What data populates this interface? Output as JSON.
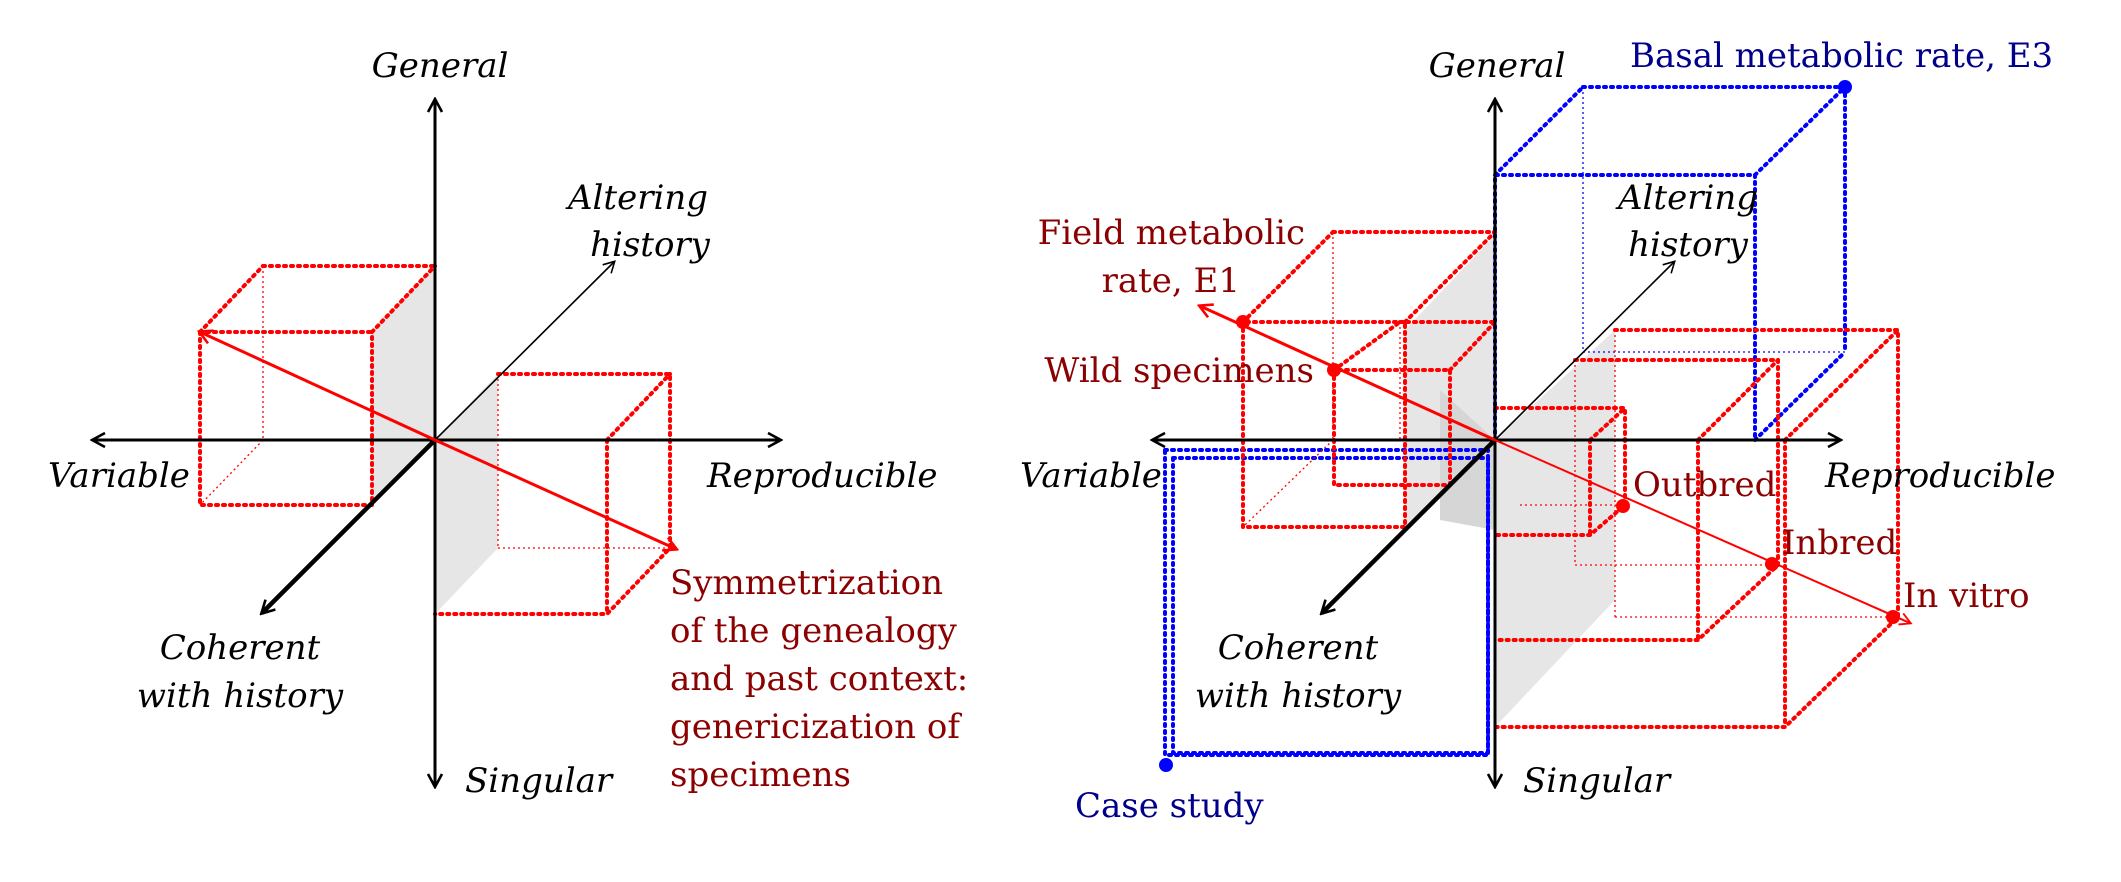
{
  "colors": {
    "axis": "#000000",
    "red_box": "#ff0000",
    "red_text": "#8b0000",
    "blue_box": "#0000ff",
    "blue_text": "#00008b",
    "shade": "#e6e6e6"
  },
  "left_panel": {
    "axes": {
      "top": "General",
      "bottom": "Singular",
      "left": "Variable",
      "right": "Reproducible",
      "diag_up_lines": [
        "Altering",
        "history"
      ],
      "diag_down_lines": [
        "Coherent",
        "with history"
      ]
    },
    "annotation_lines": [
      "Symmetrization",
      "of the genealogy",
      "and past context:",
      "genericization of",
      "specimens"
    ]
  },
  "right_panel": {
    "axes": {
      "top": "General",
      "bottom": "Singular",
      "left": "Variable",
      "right": "Reproducible",
      "diag_up_lines": [
        "Altering",
        "history"
      ],
      "diag_down_lines": [
        "Coherent",
        "with history"
      ]
    },
    "points": {
      "field_lines": [
        "Field metabolic",
        "rate, E1"
      ],
      "wild": "Wild specimens",
      "outbred": "Outbred",
      "inbred": "Inbred",
      "in_vitro": "In vitro",
      "basal": "Basal metabolic rate, E3",
      "case_study": "Case study"
    }
  }
}
